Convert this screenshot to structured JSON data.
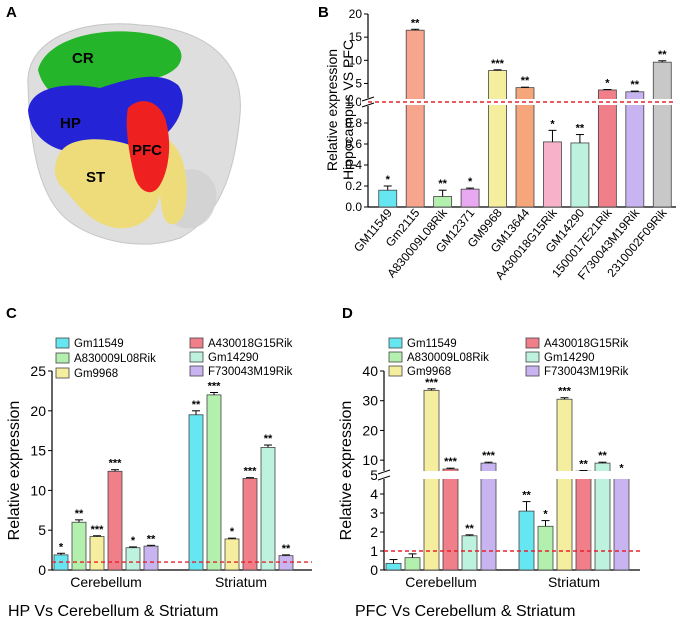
{
  "panels": {
    "a": {
      "letter": "A",
      "labels": {
        "cr": "CR",
        "hp": "HP",
        "pfc": "PFC",
        "st": "ST"
      }
    },
    "b": {
      "letter": "B"
    },
    "c": {
      "letter": "C",
      "footer": "HP Vs Cerebellum & Striatum"
    },
    "d": {
      "letter": "D",
      "footer": "PFC Vs Cerebellum & Striatum"
    }
  },
  "colors": {
    "cyan": "#66e6f0",
    "salmon": "#f7a58c",
    "lightgreen": "#b3f0ae",
    "violet": "#e9a8f2",
    "yellow": "#f5ee9f",
    "orange": "#f5a77b",
    "pink": "#f7b2ca",
    "mint": "#bdf2df",
    "red": "#f07f8a",
    "lavender": "#c9b4f2",
    "gray": "#c8c8c8",
    "dashed": "#e8202a"
  },
  "chart_data": [
    {
      "panel": "B",
      "type": "bar",
      "title": "",
      "ylabel": "Relative expression Hippocampus VS PFC",
      "ylabel_lines": [
        "Relative expression",
        "Hippocampus VS PFC"
      ],
      "categories": [
        "GM11549",
        "Gm2115",
        "A830009L08Rik",
        "GM12371",
        "GM9968",
        "GM13644",
        "A430018G15Rik",
        "GM14290",
        "1500017E21Rik",
        "F730043M19Rik",
        "2310002F09Rik"
      ],
      "values": [
        0.16,
        16.5,
        0.1,
        0.17,
        7.8,
        4.1,
        0.62,
        0.61,
        3.6,
        3.2,
        9.6
      ],
      "errors": [
        0.04,
        0.2,
        0.06,
        0.01,
        0.15,
        0.1,
        0.11,
        0.08,
        0.1,
        0.15,
        0.3
      ],
      "significance": [
        "*",
        "**",
        "**",
        "*",
        "***",
        "**",
        "*",
        "**",
        "*",
        "**",
        "**"
      ],
      "bar_colors": [
        "#66e6f0",
        "#f7a58c",
        "#b3f0ae",
        "#e9a8f2",
        "#f5ee9f",
        "#f5a77b",
        "#f7b2ca",
        "#bdf2df",
        "#f07f8a",
        "#c9b4f2",
        "#c8c8c8"
      ],
      "yaxis": {
        "break_at": 1.0,
        "lower_range": [
          0,
          1.0
        ],
        "upper_range": [
          1.0,
          20
        ],
        "ticks_lower": [
          "0.0",
          "0.2",
          "0.4",
          "0.6",
          "0.8",
          "1.0"
        ],
        "ticks_upper": [
          "5",
          "10",
          "15",
          "20"
        ]
      },
      "reference_line": 1.0
    },
    {
      "panel": "C",
      "type": "bar",
      "title": "",
      "ylabel": "Relative expression",
      "groups": [
        "Cerebellum",
        "Striatum"
      ],
      "series": [
        {
          "name": "Gm11549",
          "color": "#66e6f0",
          "values": [
            1.9,
            19.5
          ],
          "errors": [
            0.2,
            0.5
          ],
          "sig": [
            "*",
            "**"
          ]
        },
        {
          "name": "A830009L08Rik",
          "color": "#b3f0ae",
          "values": [
            6.0,
            22.0
          ],
          "errors": [
            0.3,
            0.3
          ],
          "sig": [
            "**",
            "***"
          ]
        },
        {
          "name": "Gm9968",
          "color": "#f5ee9f",
          "values": [
            4.2,
            3.9
          ],
          "errors": [
            0.1,
            0.1
          ],
          "sig": [
            "***",
            "*"
          ]
        },
        {
          "name": "A430018G15Rik",
          "color": "#f07f8a",
          "values": [
            12.4,
            11.5
          ],
          "errors": [
            0.2,
            0.1
          ],
          "sig": [
            "***",
            "***"
          ]
        },
        {
          "name": "Gm14290",
          "color": "#bdf2df",
          "values": [
            2.8,
            15.4
          ],
          "errors": [
            0.1,
            0.3
          ],
          "sig": [
            "*",
            "**"
          ]
        },
        {
          "name": "F730043M19Rik",
          "color": "#c9b4f2",
          "values": [
            3.0,
            1.8
          ],
          "errors": [
            0.1,
            0.1
          ],
          "sig": [
            "**",
            "**"
          ]
        }
      ],
      "ylim": [
        0,
        25
      ],
      "yticks": [
        "0",
        "5",
        "10",
        "15",
        "20",
        "25"
      ],
      "reference_line": 1.0
    },
    {
      "panel": "D",
      "type": "bar",
      "title": "",
      "ylabel": "Relative expression",
      "groups": [
        "Cerebellum",
        "Striatum"
      ],
      "series": [
        {
          "name": "Gm11549",
          "color": "#66e6f0",
          "values": [
            0.35,
            3.1
          ],
          "errors": [
            0.2,
            0.5
          ],
          "sig": [
            "",
            "**"
          ]
        },
        {
          "name": "A830009L08Rik",
          "color": "#b3f0ae",
          "values": [
            0.65,
            2.3
          ],
          "errors": [
            0.2,
            0.3
          ],
          "sig": [
            "",
            "*"
          ]
        },
        {
          "name": "Gm9968",
          "color": "#f5ee9f",
          "values": [
            33.5,
            30.5
          ],
          "errors": [
            0.5,
            0.5
          ],
          "sig": [
            "***",
            "***"
          ]
        },
        {
          "name": "A430018G15Rik",
          "color": "#f07f8a",
          "values": [
            7.0,
            6.3
          ],
          "errors": [
            0.3,
            0.2
          ],
          "sig": [
            "***",
            "**"
          ]
        },
        {
          "name": "Gm14290",
          "color": "#bdf2df",
          "values": [
            1.8,
            9.0
          ],
          "errors": [
            0.05,
            0.3
          ],
          "sig": [
            "**",
            "**"
          ]
        },
        {
          "name": "F730043M19Rik",
          "color": "#c9b4f2",
          "values": [
            9.0,
            5.0
          ],
          "errors": [
            0.3,
            0.1
          ],
          "sig": [
            "***",
            "*"
          ]
        }
      ],
      "yaxis": {
        "break_at": 5,
        "lower_range": [
          0,
          5
        ],
        "upper_range": [
          5,
          40
        ],
        "ticks_lower": [
          "0",
          "1",
          "2",
          "3",
          "4",
          "5"
        ],
        "ticks_upper": [
          "10",
          "20",
          "30",
          "40"
        ]
      },
      "reference_line": 1.0
    }
  ]
}
